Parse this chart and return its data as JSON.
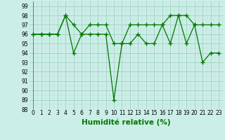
{
  "line1": [
    96,
    96,
    96,
    96,
    98,
    97,
    96,
    97,
    97,
    97,
    95,
    95,
    97,
    97,
    97,
    97,
    97,
    98,
    98,
    98,
    97,
    97,
    97,
    97
  ],
  "line2": [
    96,
    96,
    96,
    96,
    98,
    94,
    96,
    96,
    96,
    96,
    89,
    95,
    95,
    96,
    95,
    95,
    97,
    95,
    98,
    95,
    97,
    93,
    94,
    94
  ],
  "x": [
    0,
    1,
    2,
    3,
    4,
    5,
    6,
    7,
    8,
    9,
    10,
    11,
    12,
    13,
    14,
    15,
    16,
    17,
    18,
    19,
    20,
    21,
    22,
    23
  ],
  "xlim": [
    -0.5,
    23.5
  ],
  "ylim": [
    88,
    99.5
  ],
  "yticks": [
    88,
    89,
    90,
    91,
    92,
    93,
    94,
    95,
    96,
    97,
    98,
    99
  ],
  "xtick_labels": [
    "0",
    "1",
    "2",
    "3",
    "4",
    "5",
    "6",
    "7",
    "8",
    "9",
    "10",
    "11",
    "12",
    "13",
    "14",
    "15",
    "16",
    "17",
    "18",
    "19",
    "20",
    "21",
    "22",
    "23"
  ],
  "xlabel": "Humidité relative (%)",
  "line_color": "#007700",
  "bg_color": "#cceee8",
  "grid_color_major": "#99ccbb",
  "grid_color_minor": "#bbddd4",
  "marker": "+",
  "linewidth": 0.9,
  "markersize": 4,
  "markeredgewidth": 1.0,
  "tick_fontsize": 5.5,
  "label_fontsize": 7.5
}
